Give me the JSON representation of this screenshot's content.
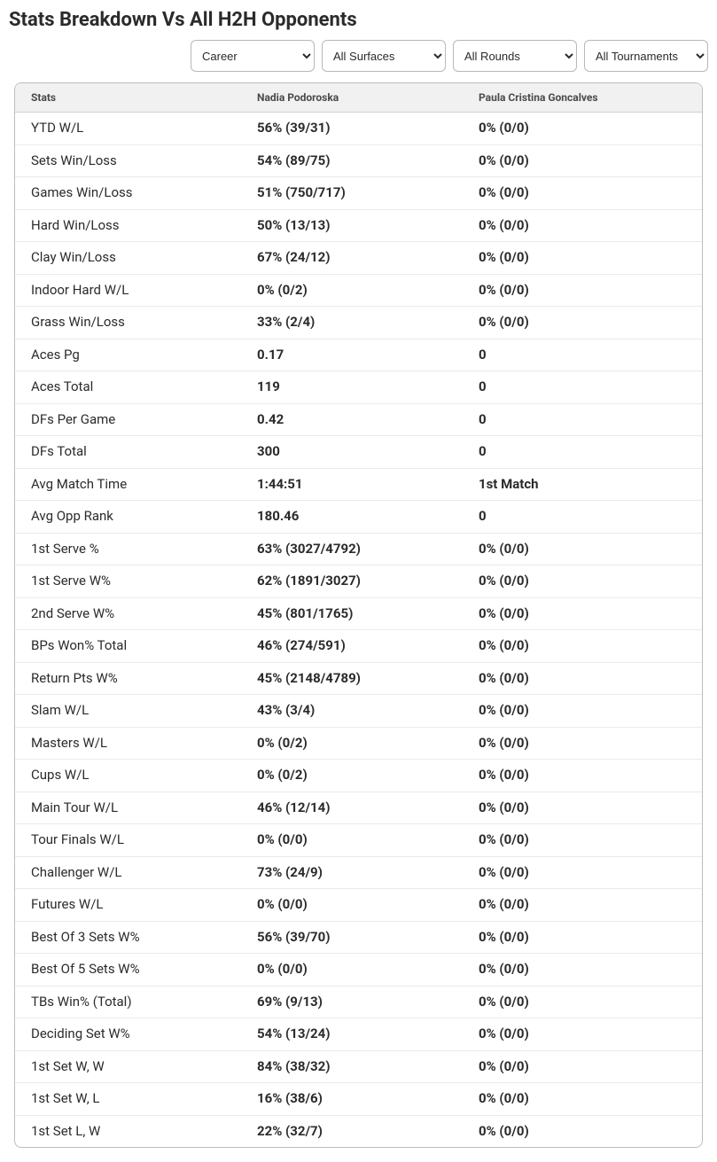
{
  "title": "Stats Breakdown Vs All H2H Opponents",
  "filters": {
    "period": "Career",
    "surface": "All Surfaces",
    "round": "All Rounds",
    "tournament": "All Tournaments"
  },
  "table": {
    "headers": {
      "stat": "Stats",
      "p1": "Nadia Podoroska",
      "p2": "Paula Cristina Goncalves"
    },
    "rows": [
      {
        "stat": "YTD W/L",
        "p1": "56% (39/31)",
        "p2": "0% (0/0)"
      },
      {
        "stat": "Sets Win/Loss",
        "p1": "54% (89/75)",
        "p2": "0% (0/0)"
      },
      {
        "stat": "Games Win/Loss",
        "p1": "51% (750/717)",
        "p2": "0% (0/0)"
      },
      {
        "stat": "Hard Win/Loss",
        "p1": "50% (13/13)",
        "p2": "0% (0/0)"
      },
      {
        "stat": "Clay Win/Loss",
        "p1": "67% (24/12)",
        "p2": "0% (0/0)"
      },
      {
        "stat": "Indoor Hard W/L",
        "p1": "0% (0/2)",
        "p2": "0% (0/0)"
      },
      {
        "stat": "Grass Win/Loss",
        "p1": "33% (2/4)",
        "p2": "0% (0/0)"
      },
      {
        "stat": "Aces Pg",
        "p1": "0.17",
        "p2": "0"
      },
      {
        "stat": "Aces Total",
        "p1": "119",
        "p2": "0"
      },
      {
        "stat": "DFs Per Game",
        "p1": "0.42",
        "p2": "0"
      },
      {
        "stat": "DFs Total",
        "p1": "300",
        "p2": "0"
      },
      {
        "stat": "Avg Match Time",
        "p1": "1:44:51",
        "p2": "1st Match"
      },
      {
        "stat": "Avg Opp Rank",
        "p1": "180.46",
        "p2": "0"
      },
      {
        "stat": "1st Serve %",
        "p1": "63% (3027/4792)",
        "p2": "0% (0/0)"
      },
      {
        "stat": "1st Serve W%",
        "p1": "62% (1891/3027)",
        "p2": "0% (0/0)"
      },
      {
        "stat": "2nd Serve W%",
        "p1": "45% (801/1765)",
        "p2": "0% (0/0)"
      },
      {
        "stat": "BPs Won% Total",
        "p1": "46% (274/591)",
        "p2": "0% (0/0)"
      },
      {
        "stat": "Return Pts W%",
        "p1": "45% (2148/4789)",
        "p2": "0% (0/0)"
      },
      {
        "stat": "Slam W/L",
        "p1": "43% (3/4)",
        "p2": "0% (0/0)"
      },
      {
        "stat": "Masters W/L",
        "p1": "0% (0/2)",
        "p2": "0% (0/0)"
      },
      {
        "stat": "Cups W/L",
        "p1": "0% (0/2)",
        "p2": "0% (0/0)"
      },
      {
        "stat": "Main Tour W/L",
        "p1": "46% (12/14)",
        "p2": "0% (0/0)"
      },
      {
        "stat": "Tour Finals W/L",
        "p1": "0% (0/0)",
        "p2": "0% (0/0)"
      },
      {
        "stat": "Challenger W/L",
        "p1": "73% (24/9)",
        "p2": "0% (0/0)"
      },
      {
        "stat": "Futures W/L",
        "p1": "0% (0/0)",
        "p2": "0% (0/0)"
      },
      {
        "stat": "Best Of 3 Sets W%",
        "p1": "56% (39/70)",
        "p2": "0% (0/0)"
      },
      {
        "stat": "Best Of 5 Sets W%",
        "p1": "0% (0/0)",
        "p2": "0% (0/0)"
      },
      {
        "stat": "TBs Win% (Total)",
        "p1": "69% (9/13)",
        "p2": "0% (0/0)"
      },
      {
        "stat": "Deciding Set W%",
        "p1": "54% (13/24)",
        "p2": "0% (0/0)"
      },
      {
        "stat": "1st Set W, W",
        "p1": "84% (38/32)",
        "p2": "0% (0/0)"
      },
      {
        "stat": "1st Set W, L",
        "p1": "16% (38/6)",
        "p2": "0% (0/0)"
      },
      {
        "stat": "1st Set L, W",
        "p1": "22% (32/7)",
        "p2": "0% (0/0)"
      }
    ]
  }
}
